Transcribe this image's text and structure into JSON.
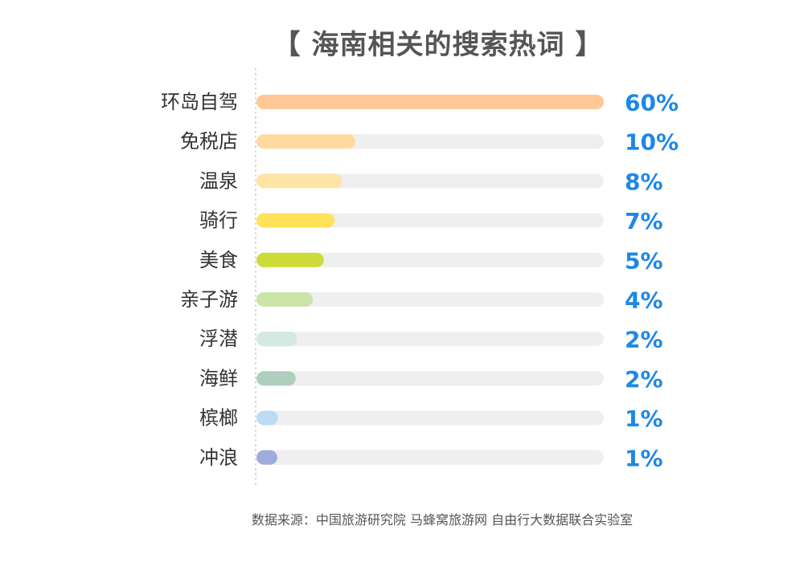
{
  "page": {
    "title": "【 海南相关的搜索热词 】",
    "source": "数据来源：中国旅游研究院 马蜂窝旅游网 自由行大数据联合实验室"
  },
  "chart_data": {
    "type": "bar",
    "orientation": "horizontal",
    "title": "【 海南相关的搜索热词 】",
    "categories": [
      "环岛自驾",
      "免税店",
      "温泉",
      "骑行",
      "美食",
      "亲子游",
      "浮潜",
      "海鲜",
      "槟榔",
      "冲浪"
    ],
    "values": [
      60,
      10,
      8,
      7,
      5,
      4,
      2,
      2,
      1,
      1
    ],
    "value_labels": [
      "60%",
      "10%",
      "8%",
      "7%",
      "5%",
      "4%",
      "2%",
      "2%",
      "1%",
      "1%"
    ],
    "bar_fractions": [
      1.0,
      0.285,
      0.247,
      0.225,
      0.194,
      0.162,
      0.117,
      0.113,
      0.062,
      0.06
    ],
    "colors": [
      "#FFC896",
      "#FFDA9E",
      "#FFE4A8",
      "#FFE259",
      "#CDDC39",
      "#CBE5A8",
      "#D3E9E1",
      "#AECFBD",
      "#BBDCF3",
      "#9FABDA"
    ],
    "track_color": "#EFEFEF",
    "value_label_color": "#1E88E5",
    "grid": false,
    "legend": "none"
  }
}
